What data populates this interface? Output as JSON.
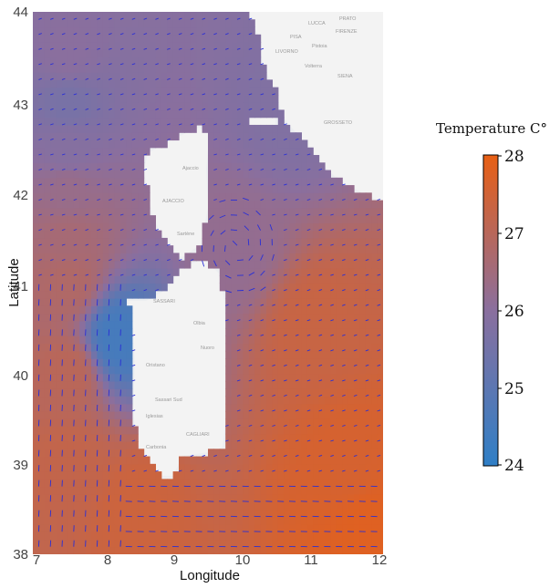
{
  "chart_data": {
    "type": "heatmap",
    "subtype": "gridded temperature map with current vector overlay",
    "title": "",
    "xlabel": "Longitude",
    "ylabel": "Latitude",
    "xlim": [
      7,
      12
    ],
    "ylim": [
      38,
      44
    ],
    "xticks": [
      "7",
      "8",
      "9",
      "10",
      "11",
      "12"
    ],
    "yticks": [
      "38",
      "39",
      "40",
      "41",
      "42",
      "43",
      "44"
    ],
    "grid": false,
    "colorbar": {
      "title": "Temperature C°",
      "min": 24,
      "max": 28,
      "ticks": [
        "24",
        "25",
        "26",
        "27",
        "28"
      ],
      "colors": {
        "low": "#2f7fc6",
        "mid": "#8a6f9e",
        "high": "#e85f14"
      },
      "placement": "right"
    },
    "vector_color": "#2a2fd6",
    "basemap_labels": [
      "LUCCA",
      "FIRENZE",
      "PRATO",
      "PISA",
      "Pistoia",
      "LIVORNO",
      "SIENA",
      "GROSSETO",
      "Volterra",
      "Ajaccio",
      "AJACCIO",
      "Sartène",
      "SASSARI",
      "Olbia",
      "Nuoro",
      "Oristano",
      "Iglesias",
      "CAGLIARI",
      "Carbonia",
      "Sassari Sud"
    ],
    "temperature_field": [
      {
        "lat": 43.5,
        "lon": 7.5,
        "value": 26.0
      },
      {
        "lat": 43.0,
        "lon": 7.5,
        "value": 25.6
      },
      {
        "lat": 42.5,
        "lon": 7.5,
        "value": 25.9
      },
      {
        "lat": 42.0,
        "lon": 7.5,
        "value": 26.3
      },
      {
        "lat": 41.5,
        "lon": 7.5,
        "value": 26.6
      },
      {
        "lat": 41.0,
        "lon": 7.5,
        "value": 26.8
      },
      {
        "lat": 40.0,
        "lon": 7.5,
        "value": 27.0
      },
      {
        "lat": 39.0,
        "lon": 7.5,
        "value": 27.2
      },
      {
        "lat": 38.5,
        "lon": 8.5,
        "value": 27.4
      },
      {
        "lat": 40.4,
        "lon": 8.2,
        "value": 24.5
      },
      {
        "lat": 41.4,
        "lon": 9.9,
        "value": 26.2
      },
      {
        "lat": 42.9,
        "lon": 10.6,
        "value": 25.8
      },
      {
        "lat": 40.5,
        "lon": 11.0,
        "value": 27.3
      },
      {
        "lat": 39.0,
        "lon": 11.5,
        "value": 27.6
      },
      {
        "lat": 38.3,
        "lon": 11.8,
        "value": 27.8
      }
    ]
  }
}
